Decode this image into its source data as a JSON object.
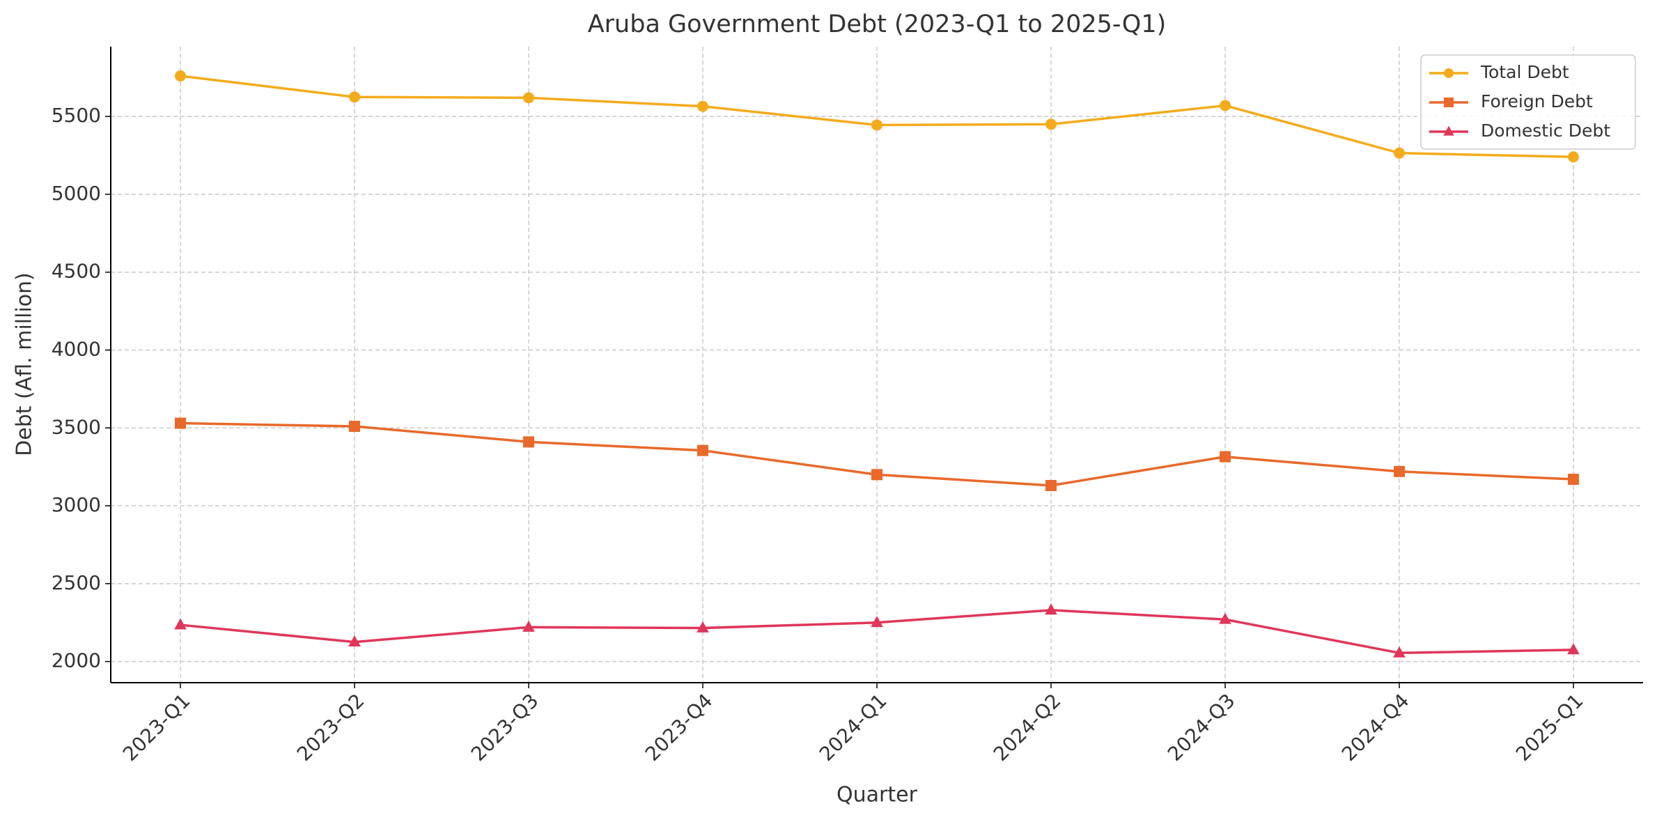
{
  "chart_data": {
    "type": "line",
    "title": "Aruba Government Debt (2023-Q1 to 2025-Q1)",
    "x_label": "Quarter",
    "y_label": "Debt (Afl. million)",
    "categories": [
      "2023-Q1",
      "2023-Q2",
      "2023-Q3",
      "2023-Q4",
      "2024-Q1",
      "2024-Q2",
      "2024-Q3",
      "2024-Q4",
      "2025-Q1"
    ],
    "series": [
      {
        "name": "Total Debt",
        "color": "#f4ab1b",
        "marker": "circle",
        "values": [
          5760,
          5625,
          5620,
          5565,
          5445,
          5450,
          5570,
          5265,
          5240
        ]
      },
      {
        "name": "Foreign Debt",
        "color": "#e8692a",
        "marker": "square",
        "values": [
          3530,
          3510,
          3410,
          3355,
          3200,
          3130,
          3315,
          3220,
          3170
        ]
      },
      {
        "name": "Domestic Debt",
        "color": "#e0365a",
        "marker": "triangle",
        "values": [
          2235,
          2125,
          2220,
          2215,
          2250,
          2330,
          2270,
          2055,
          2075
        ]
      }
    ],
    "ylim": [
      1864,
      5948
    ],
    "yticks": [
      2000,
      2500,
      3000,
      3500,
      4000,
      4500,
      5000,
      5500
    ],
    "grid": true,
    "legend": "upper right"
  }
}
